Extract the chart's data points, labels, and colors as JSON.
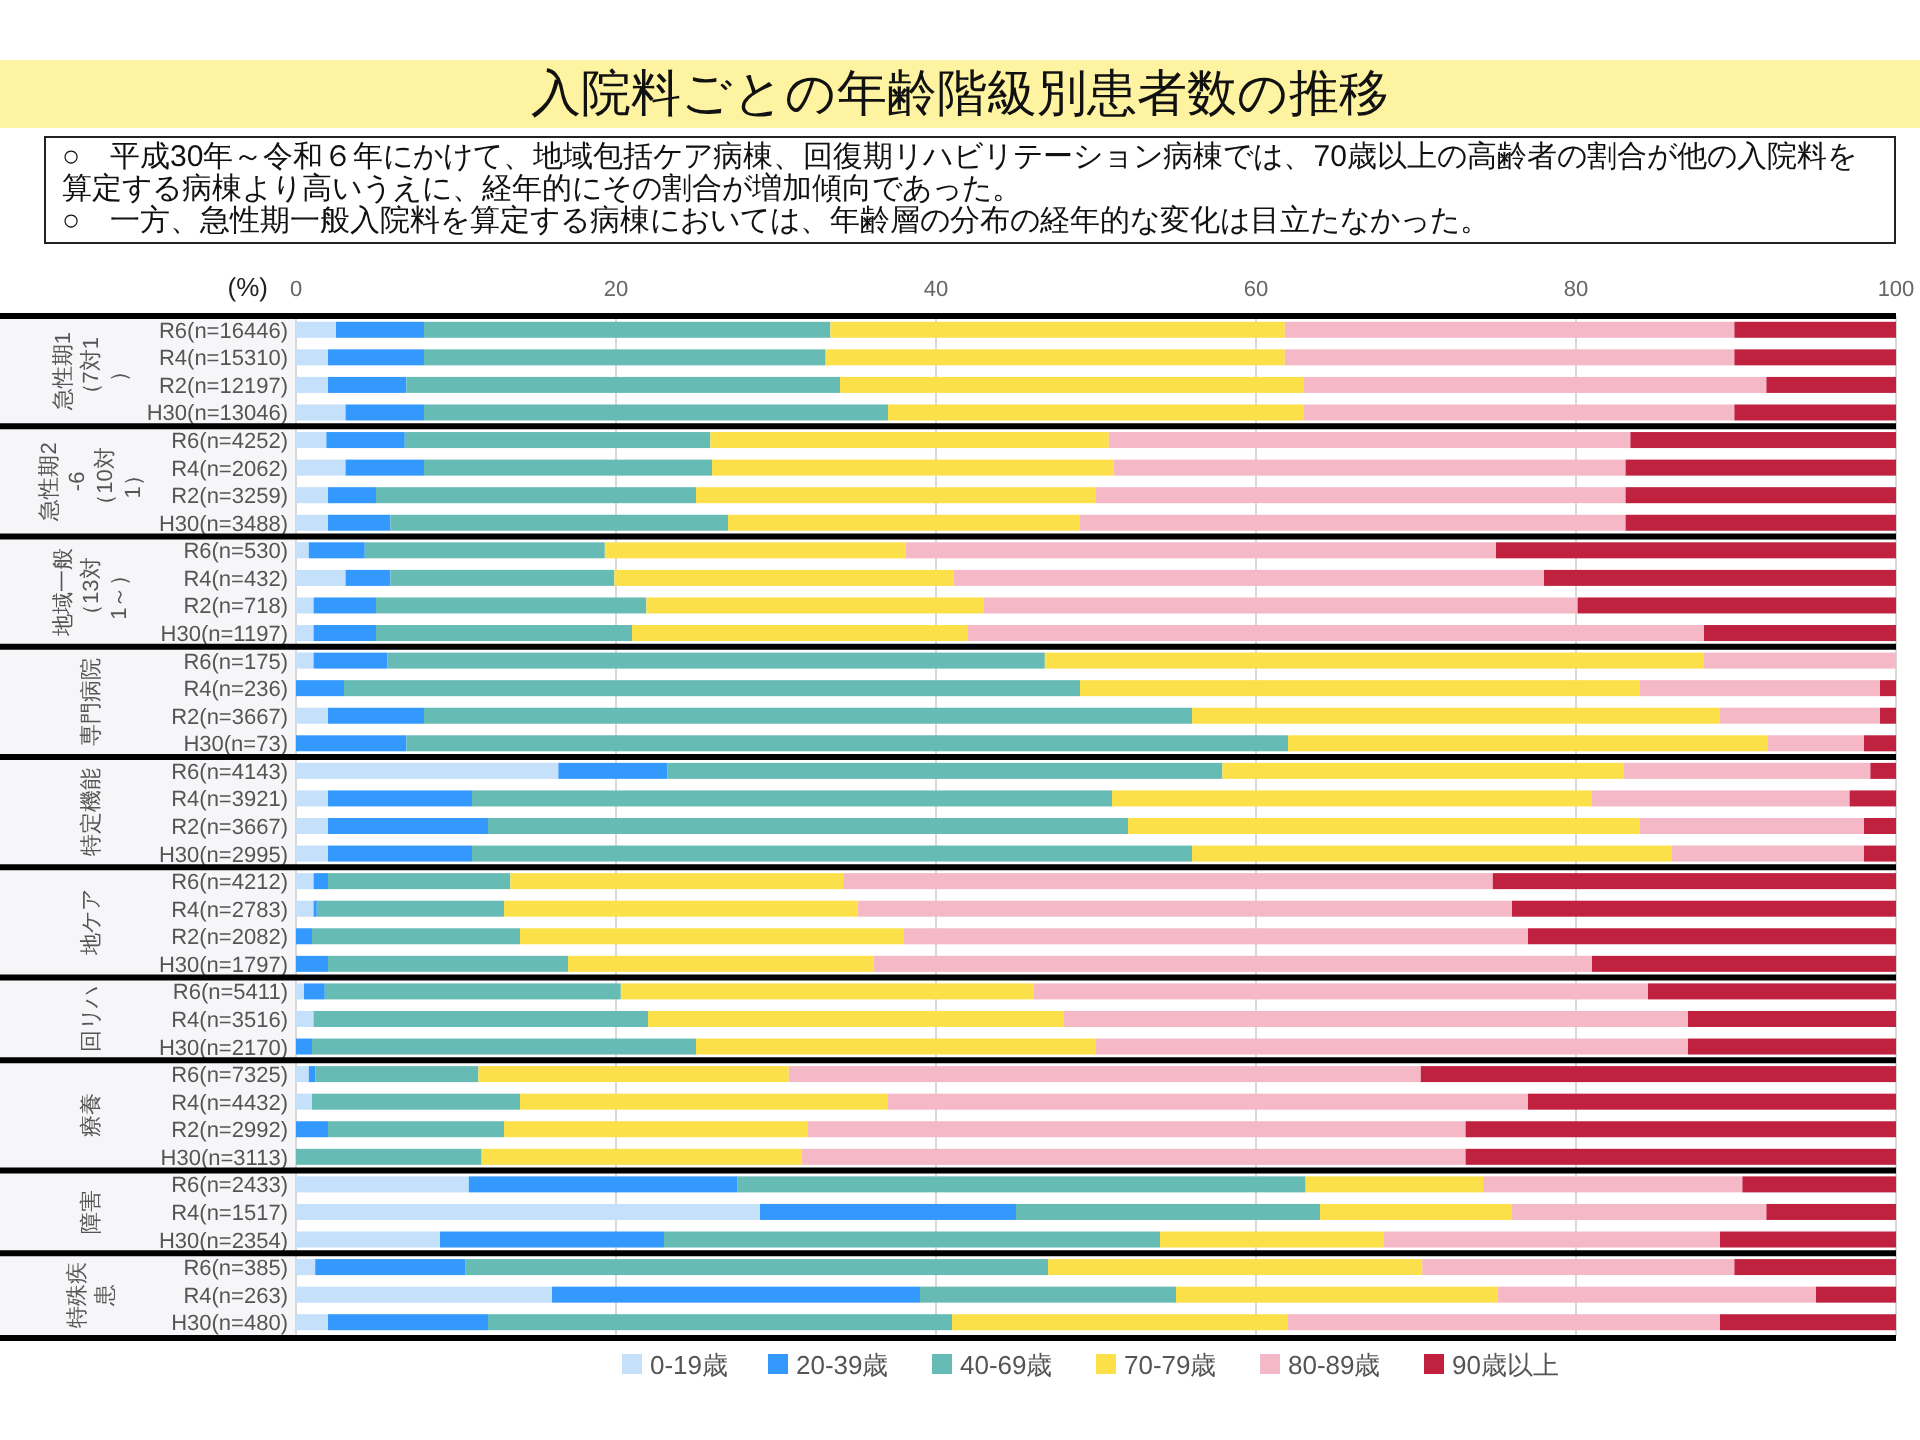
{
  "chart_data": [
    {
      "type": "bar",
      "orientation": "horizontal",
      "stacked": true,
      "title": "入院料ごとの年齢階級別患者数の推移",
      "annotations": [
        "○　平成30年～令和６年にかけて、地域包括ケア病棟、回復期リハビリテーション病棟では、70歳以上の高齢者の割合が他の入院料を算定する病棟より高いうえに、経年的にその割合が増加傾向であった。",
        "○　一方、急性期一般入院料を算定する病棟においては、年齢層の分布の経年的な変化は目立たなかった。"
      ],
      "xlabel": "(%)",
      "ylabel": "急性期1（7対1）",
      "xlim": [
        0,
        100
      ],
      "xticks": [
        0,
        20,
        40,
        60,
        80,
        100
      ],
      "grid": "x",
      "categories": [
        "R6(n=16446)",
        "R4(n=15310)",
        "R2(n=12197)",
        "H30(n=13046)"
      ],
      "series": [
        {
          "color": "#c4e0fb",
          "values": [
            2.5,
            2.0,
            2.0,
            3.1
          ]
        },
        {
          "color": "#3399ff",
          "values": [
            5.5,
            6.0,
            4.9,
            4.9
          ]
        },
        {
          "color": "#66bbb5",
          "values": [
            25.4,
            25.1,
            27.1,
            29.0
          ]
        },
        {
          "color": "#fce04a",
          "values": [
            28.4,
            28.7,
            29.0,
            26.0
          ]
        },
        {
          "color": "#f4b8c6",
          "values": [
            28.1,
            28.1,
            28.9,
            26.9
          ]
        },
        {
          "color": "#c0213f",
          "values": [
            10.1,
            10.1,
            8.1,
            10.1
          ]
        }
      ]
    },
    {
      "type": "bar",
      "orientation": "horizontal",
      "stacked": true,
      "ylabel": "急性期2-6（10対1）",
      "xlim": [
        0,
        100
      ],
      "xticks": [
        0,
        20,
        40,
        60,
        80,
        100
      ],
      "grid": "x",
      "tick_labels": "y",
      "categories": [
        "R6(n=4252)",
        "R4(n=2062)",
        "R2(n=3259)",
        "H30(n=3488)"
      ],
      "series": [
        {
          "color": "#c4e0fb",
          "values": [
            1.9,
            3.1,
            2.0,
            2.0
          ]
        },
        {
          "color": "#3399ff",
          "values": [
            4.9,
            4.9,
            3.0,
            3.9
          ]
        },
        {
          "color": "#66bbb5",
          "values": [
            19.1,
            18.0,
            20.0,
            21.1
          ]
        },
        {
          "color": "#fce04a",
          "values": [
            24.9,
            25.1,
            25.0,
            22.0
          ]
        },
        {
          "color": "#f4b8c6",
          "values": [
            32.6,
            32.0,
            33.1,
            34.1
          ]
        },
        {
          "color": "#c0213f",
          "values": [
            16.6,
            16.9,
            16.9,
            16.9
          ]
        }
      ]
    },
    {
      "type": "bar",
      "orientation": "horizontal",
      "stacked": true,
      "ylabel": "地域一般（13対1～）",
      "xlim": [
        0,
        100
      ],
      "xticks": [
        0,
        20,
        40,
        60,
        80,
        100
      ],
      "grid": "x",
      "tick_labels": "y",
      "categories": [
        "R6(n=530)",
        "R4(n=432)",
        "R2(n=718)",
        "H30(n=1197)"
      ],
      "series": [
        {
          "color": "#c4e0fb",
          "values": [
            0.8,
            3.1,
            1.1,
            1.1
          ]
        },
        {
          "color": "#3399ff",
          "values": [
            3.5,
            2.8,
            3.9,
            3.9
          ]
        },
        {
          "color": "#66bbb5",
          "values": [
            15.0,
            14.0,
            16.9,
            16.0
          ]
        },
        {
          "color": "#fce04a",
          "values": [
            18.8,
            21.2,
            21.1,
            21.0
          ]
        },
        {
          "color": "#f4b8c6",
          "values": [
            36.9,
            36.9,
            37.1,
            46.0
          ]
        },
        {
          "color": "#c0213f",
          "values": [
            25.0,
            22.0,
            19.9,
            12.0
          ]
        }
      ]
    },
    {
      "type": "bar",
      "orientation": "horizontal",
      "stacked": true,
      "ylabel": "専門病院",
      "xlim": [
        0,
        100
      ],
      "xticks": [
        0,
        20,
        40,
        60,
        80,
        100
      ],
      "grid": "x",
      "tick_labels": "y",
      "categories": [
        "R6(n=175)",
        "R4(n=236)",
        "R2(n=3667)",
        "H30(n=73)"
      ],
      "series": [
        {
          "color": "#c4e0fb",
          "values": [
            1.1,
            0,
            2.0,
            0
          ]
        },
        {
          "color": "#3399ff",
          "values": [
            4.6,
            3.0,
            6.0,
            6.9
          ]
        },
        {
          "color": "#66bbb5",
          "values": [
            41.1,
            46.0,
            48.0,
            55.1
          ]
        },
        {
          "color": "#fce04a",
          "values": [
            41.2,
            35.0,
            33.0,
            30.0
          ]
        },
        {
          "color": "#f4b8c6",
          "values": [
            12.0,
            15.0,
            10.0,
            6.0
          ]
        },
        {
          "color": "#c0213f",
          "values": [
            0,
            1.0,
            1.0,
            2.0
          ]
        }
      ]
    },
    {
      "type": "bar",
      "orientation": "horizontal",
      "stacked": true,
      "ylabel": "特定機能",
      "xlim": [
        0,
        100
      ],
      "xticks": [
        0,
        20,
        40,
        60,
        80,
        100
      ],
      "grid": "x",
      "tick_labels": "y",
      "categories": [
        "R6(n=4143)",
        "R4(n=3921)",
        "R2(n=3667)",
        "H30(n=2995)"
      ],
      "series": [
        {
          "color": "#c4e0fb",
          "values": [
            16.4,
            2.0,
            2.0,
            2.0
          ]
        },
        {
          "color": "#3399ff",
          "values": [
            6.8,
            9.0,
            10.0,
            9.0
          ]
        },
        {
          "color": "#66bbb5",
          "values": [
            34.7,
            40.0,
            40.0,
            45.0
          ]
        },
        {
          "color": "#fce04a",
          "values": [
            25.1,
            30.0,
            32.0,
            30.0
          ]
        },
        {
          "color": "#f4b8c6",
          "values": [
            15.4,
            16.1,
            14.0,
            12.0
          ]
        },
        {
          "color": "#c0213f",
          "values": [
            1.6,
            2.9,
            2.0,
            2.0
          ]
        }
      ]
    },
    {
      "type": "bar",
      "orientation": "horizontal",
      "stacked": true,
      "ylabel": "地ケア",
      "xlim": [
        0,
        100
      ],
      "xticks": [
        0,
        20,
        40,
        60,
        80,
        100
      ],
      "grid": "x",
      "tick_labels": "y",
      "categories": [
        "R6(n=4212)",
        "R4(n=2783)",
        "R2(n=2082)",
        "H30(n=1797)"
      ],
      "series": [
        {
          "color": "#c4e0fb",
          "values": [
            1.1,
            1.1,
            0,
            0
          ]
        },
        {
          "color": "#3399ff",
          "values": [
            0.9,
            0.2,
            1.0,
            2.0
          ]
        },
        {
          "color": "#66bbb5",
          "values": [
            11.4,
            11.7,
            13.0,
            15.0
          ]
        },
        {
          "color": "#fce04a",
          "values": [
            20.8,
            22.1,
            24.0,
            19.1
          ]
        },
        {
          "color": "#f4b8c6",
          "values": [
            40.6,
            40.9,
            39.0,
            44.9
          ]
        },
        {
          "color": "#c0213f",
          "values": [
            25.2,
            24.0,
            23.0,
            19.0
          ]
        }
      ]
    },
    {
      "type": "bar",
      "orientation": "horizontal",
      "stacked": true,
      "ylabel": "回リハ",
      "xlim": [
        0,
        100
      ],
      "xticks": [
        0,
        20,
        40,
        60,
        80,
        100
      ],
      "grid": "x",
      "tick_labels": "y",
      "categories": [
        "R6(n=5411)",
        "R4(n=3516)",
        "H30(n=2170)"
      ],
      "series": [
        {
          "color": "#c4e0fb",
          "values": [
            0.5,
            1.1,
            0
          ]
        },
        {
          "color": "#3399ff",
          "values": [
            1.3,
            0,
            1.0
          ]
        },
        {
          "color": "#66bbb5",
          "values": [
            18.5,
            20.9,
            24.0
          ]
        },
        {
          "color": "#fce04a",
          "values": [
            25.8,
            26.0,
            25.0
          ]
        },
        {
          "color": "#f4b8c6",
          "values": [
            38.4,
            39.0,
            37.0
          ]
        },
        {
          "color": "#c0213f",
          "values": [
            15.5,
            13.0,
            13.0
          ]
        }
      ]
    },
    {
      "type": "bar",
      "orientation": "horizontal",
      "stacked": true,
      "ylabel": "療養",
      "xlim": [
        0,
        100
      ],
      "xticks": [
        0,
        20,
        40,
        60,
        80,
        100
      ],
      "grid": "x",
      "tick_labels": "y",
      "categories": [
        "R6(n=7325)",
        "R4(n=4432)",
        "R2(n=2992)",
        "H30(n=3113)"
      ],
      "series": [
        {
          "color": "#c4e0fb",
          "values": [
            0.8,
            1.0,
            0,
            0
          ]
        },
        {
          "color": "#3399ff",
          "values": [
            0.4,
            0,
            2.0,
            0
          ]
        },
        {
          "color": "#66bbb5",
          "values": [
            10.2,
            13.0,
            11.0,
            11.6
          ]
        },
        {
          "color": "#fce04a",
          "values": [
            19.4,
            23.0,
            19.0,
            20.0
          ]
        },
        {
          "color": "#f4b8c6",
          "values": [
            39.5,
            40.0,
            41.1,
            41.5
          ]
        },
        {
          "color": "#c0213f",
          "values": [
            29.7,
            23.0,
            26.9,
            26.9
          ]
        }
      ]
    },
    {
      "type": "bar",
      "orientation": "horizontal",
      "stacked": true,
      "ylabel": "障害",
      "xlim": [
        0,
        100
      ],
      "xticks": [
        0,
        20,
        40,
        60,
        80,
        100
      ],
      "grid": "x",
      "tick_labels": "y",
      "categories": [
        "R6(n=2433)",
        "R4(n=1517)",
        "H30(n=2354)"
      ],
      "series": [
        {
          "color": "#c4e0fb",
          "values": [
            10.8,
            29.0,
            9.0
          ]
        },
        {
          "color": "#3399ff",
          "values": [
            16.8,
            16.0,
            14.0
          ]
        },
        {
          "color": "#66bbb5",
          "values": [
            35.5,
            19.0,
            31.0
          ]
        },
        {
          "color": "#fce04a",
          "values": [
            11.1,
            12.0,
            14.0
          ]
        },
        {
          "color": "#f4b8c6",
          "values": [
            16.2,
            15.9,
            21.0
          ]
        },
        {
          "color": "#c0213f",
          "values": [
            9.6,
            8.1,
            11.0
          ]
        }
      ]
    },
    {
      "type": "bar",
      "orientation": "horizontal",
      "stacked": true,
      "ylabel": "特殊疾患",
      "xlim": [
        0,
        100
      ],
      "xticks": [
        0,
        20,
        40,
        60,
        80,
        100
      ],
      "grid": "x",
      "tick_labels": "y",
      "legend": "bottom",
      "categories": [
        "R6(n=385)",
        "R4(n=263)",
        "H30(n=480)"
      ],
      "series": [
        {
          "name": "0-19歳",
          "color": "#c4e0fb",
          "values": [
            1.2,
            16.0,
            2.0
          ]
        },
        {
          "name": "20-39歳",
          "color": "#3399ff",
          "values": [
            9.4,
            23.0,
            10.0
          ]
        },
        {
          "name": "40-69歳",
          "color": "#66bbb5",
          "values": [
            36.4,
            16.0,
            29.0
          ]
        },
        {
          "name": "70-79歳",
          "color": "#fce04a",
          "values": [
            23.4,
            20.1,
            21.0
          ]
        },
        {
          "name": "80-89歳",
          "color": "#f4b8c6",
          "values": [
            19.5,
            19.9,
            27.0
          ]
        },
        {
          "name": "90歳以上",
          "color": "#c0213f",
          "values": [
            10.1,
            5.0,
            11.0
          ]
        }
      ]
    }
  ]
}
